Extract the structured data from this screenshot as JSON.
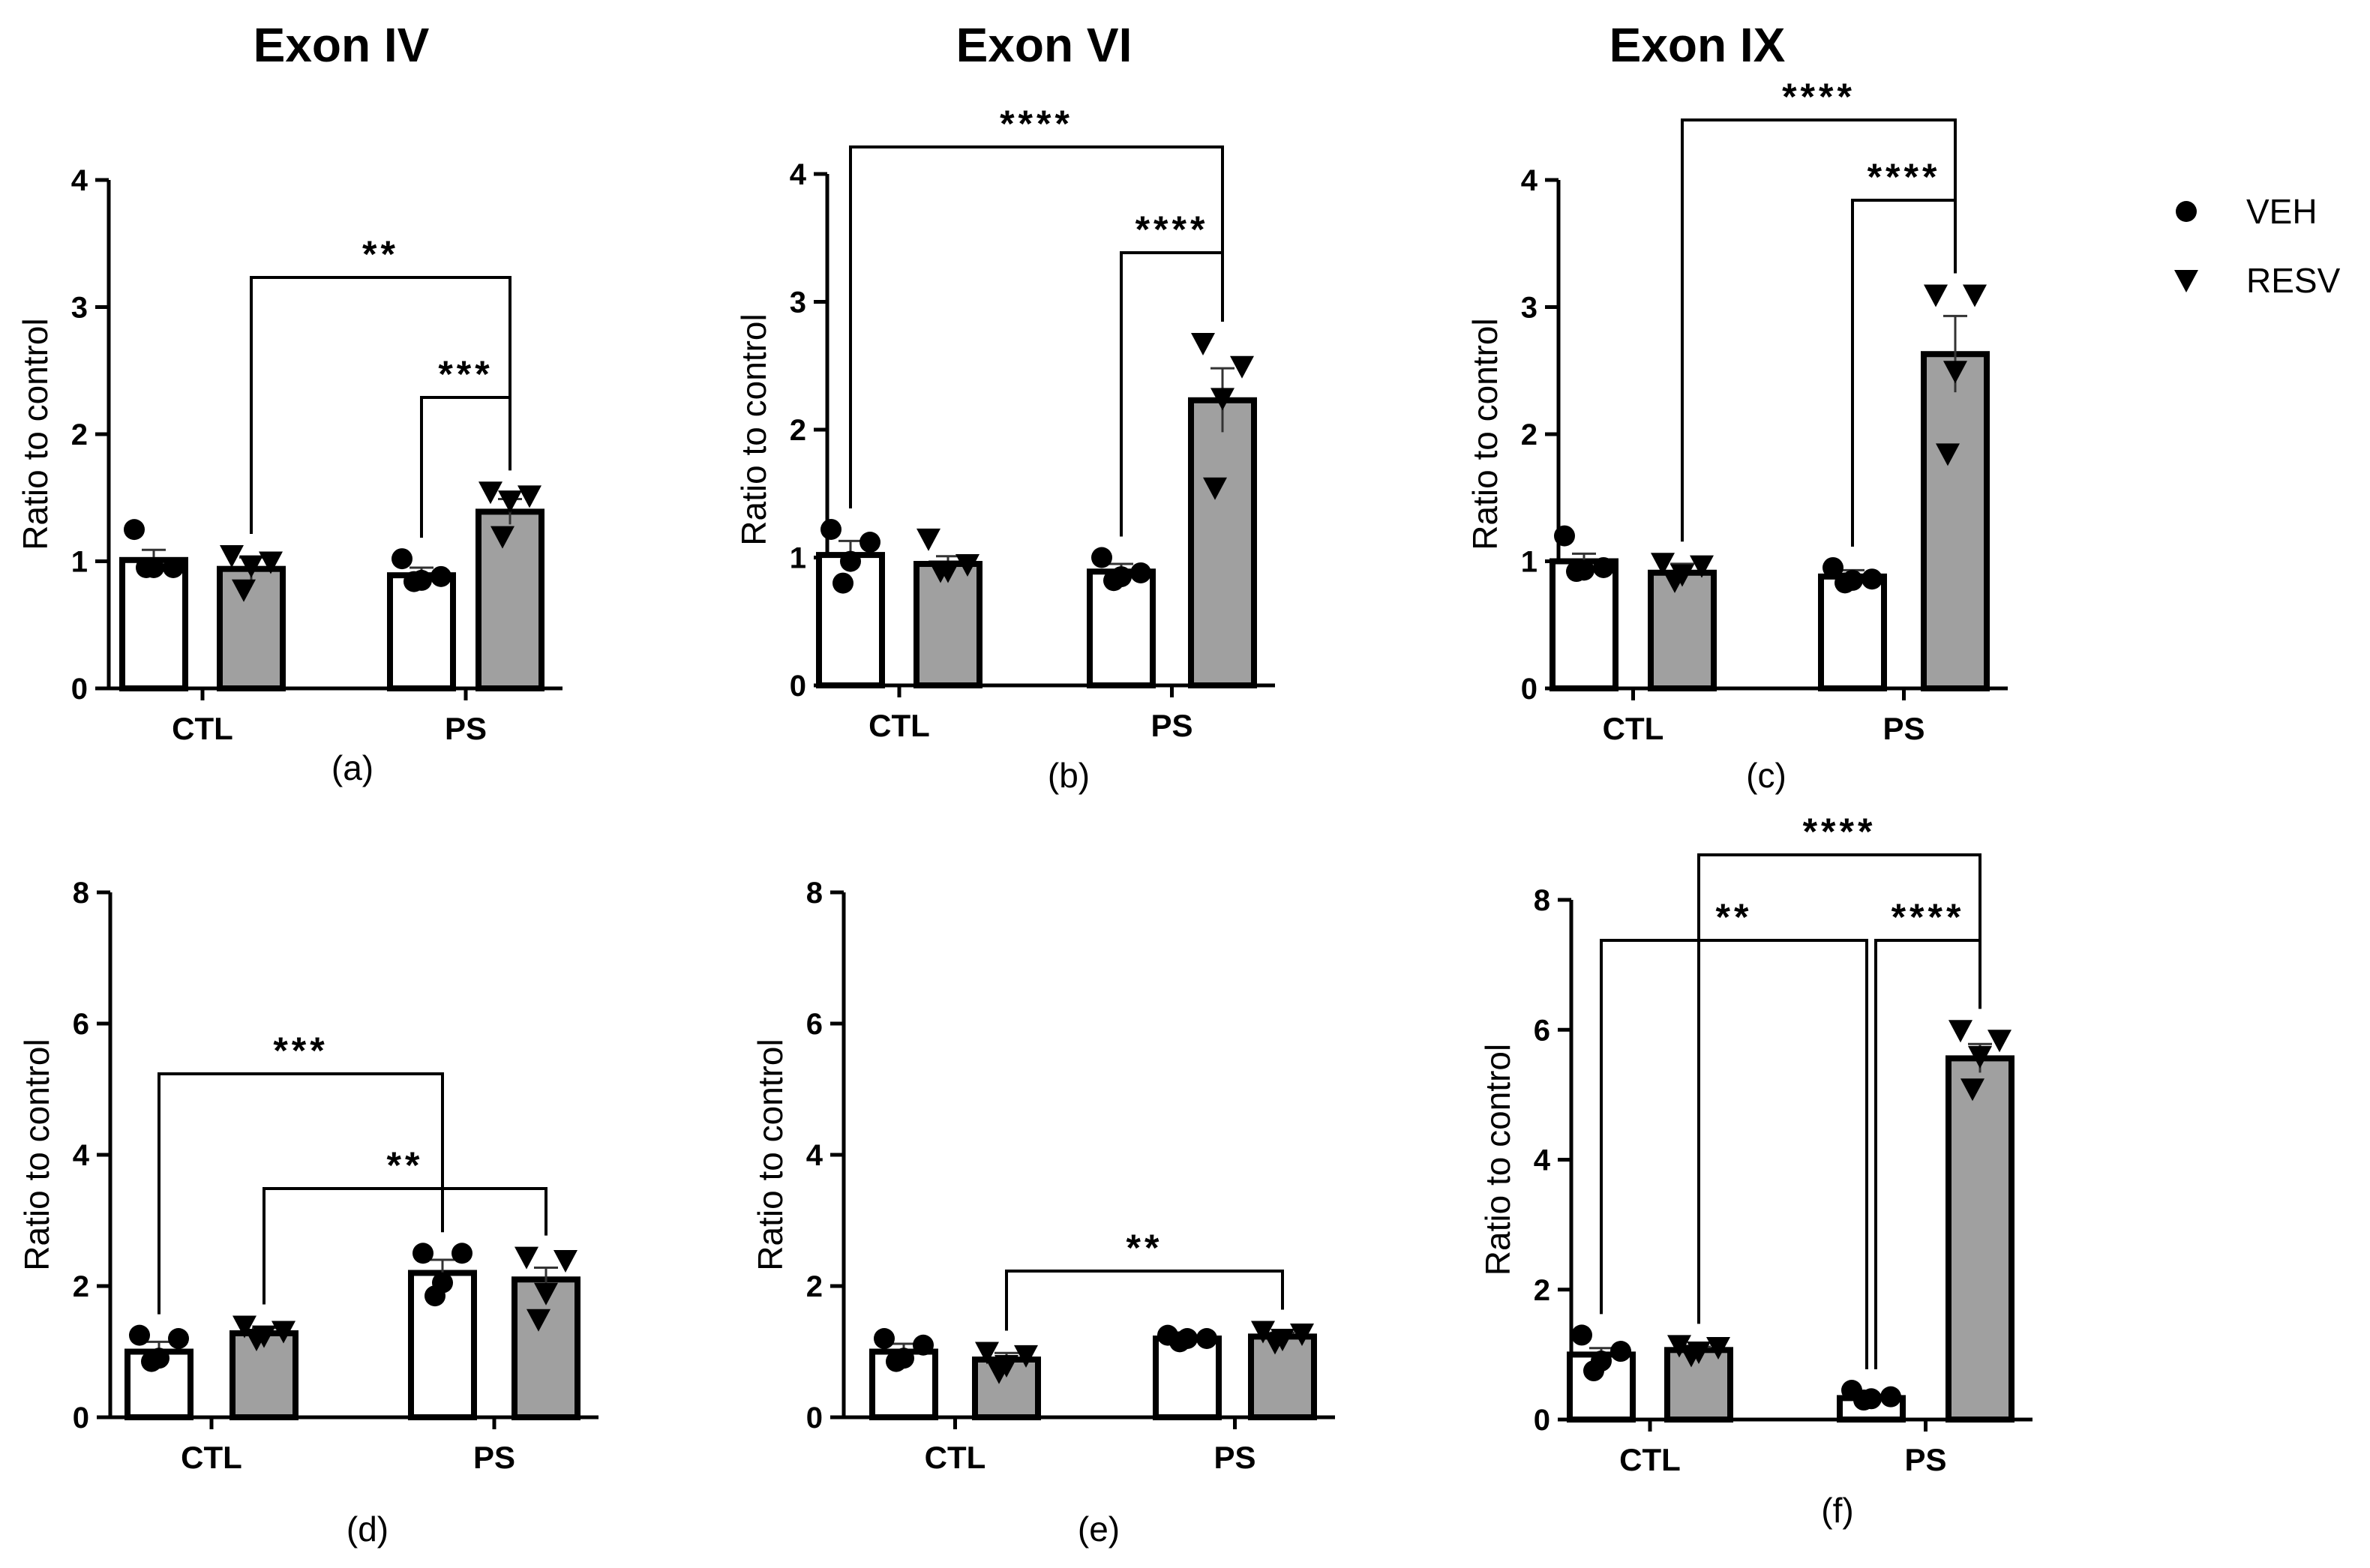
{
  "figure": {
    "column_titles": [
      "Exon IV",
      "Exon VI",
      "Exon IX"
    ],
    "legend": [
      {
        "label": "VEH",
        "marker": "circle",
        "fill": "#ffffff"
      },
      {
        "label": "RESV",
        "marker": "triangle-down",
        "fill": "#a0a0a0"
      }
    ]
  },
  "chart_data": [
    {
      "type": "bar",
      "panel_label": "(a)",
      "ylabel": "Ratio to  control",
      "ylim": [
        0,
        4
      ],
      "yticks": [
        0,
        1,
        2,
        3,
        4
      ],
      "categories": [
        "CTL",
        "PS"
      ],
      "series": [
        {
          "name": "VEH",
          "values": [
            1.01,
            0.89
          ],
          "sem": [
            0.08,
            0.06
          ],
          "points": [
            [
              1.25,
              0.95,
              0.95,
              0.95
            ],
            [
              1.02,
              0.88,
              0.85,
              0.84
            ]
          ]
        },
        {
          "name": "RESV",
          "values": [
            0.94,
            1.39
          ],
          "sem": [
            0.09,
            0.1
          ],
          "points": [
            [
              1.05,
              1.0,
              0.97,
              0.78
            ],
            [
              1.55,
              1.52,
              1.48,
              1.2
            ]
          ]
        }
      ],
      "significance": [
        {
          "from": [
            "RESV",
            "CTL"
          ],
          "to": [
            "RESV",
            "PS"
          ],
          "label": "**"
        },
        {
          "from": [
            "VEH",
            "PS"
          ],
          "to": [
            "RESV",
            "PS"
          ],
          "label": "***"
        }
      ]
    },
    {
      "type": "bar",
      "panel_label": "(b)",
      "ylabel": "Ratio to control",
      "ylim": [
        0,
        4
      ],
      "yticks": [
        0,
        1,
        2,
        3,
        4
      ],
      "categories": [
        "CTL",
        "PS"
      ],
      "series": [
        {
          "name": "VEH",
          "values": [
            1.02,
            0.89
          ],
          "sem": [
            0.11,
            0.06
          ],
          "points": [
            [
              1.22,
              1.12,
              0.97,
              0.8
            ],
            [
              1.0,
              0.88,
              0.85,
              0.82
            ]
          ]
        },
        {
          "name": "RESV",
          "values": [
            0.95,
            2.23
          ],
          "sem": [
            0.06,
            0.25
          ],
          "points": [
            [
              1.15,
              0.95,
              0.9,
              0.9
            ],
            [
              2.68,
              2.5,
              2.25,
              1.55
            ]
          ]
        }
      ],
      "significance": [
        {
          "from": [
            "VEH",
            "CTL"
          ],
          "to": [
            "RESV",
            "PS"
          ],
          "label": "****"
        },
        {
          "from": [
            "VEH",
            "PS"
          ],
          "to": [
            "RESV",
            "PS"
          ],
          "label": "****"
        }
      ]
    },
    {
      "type": "bar",
      "panel_label": "(c)",
      "ylabel": "Ratio to control",
      "ylim": [
        0,
        4
      ],
      "yticks": [
        0,
        1,
        2,
        3,
        4
      ],
      "categories": [
        "CTL",
        "PS"
      ],
      "series": [
        {
          "name": "VEH",
          "values": [
            1.0,
            0.88
          ],
          "sem": [
            0.06,
            0.05
          ],
          "points": [
            [
              1.2,
              0.95,
              0.93,
              0.92
            ],
            [
              0.95,
              0.86,
              0.85,
              0.83
            ]
          ]
        },
        {
          "name": "RESV",
          "values": [
            0.91,
            2.63
          ],
          "sem": [
            0.07,
            0.3
          ],
          "points": [
            [
              0.99,
              0.97,
              0.9,
              0.85
            ],
            [
              3.1,
              3.1,
              2.5,
              1.85
            ]
          ]
        }
      ],
      "significance": [
        {
          "from": [
            "RESV",
            "CTL"
          ],
          "to": [
            "RESV",
            "PS"
          ],
          "label": "****"
        },
        {
          "from": [
            "VEH",
            "PS"
          ],
          "to": [
            "RESV",
            "PS"
          ],
          "label": "****"
        }
      ]
    },
    {
      "type": "bar",
      "panel_label": "(d)",
      "ylabel": "Ratio to control",
      "ylim": [
        0,
        8
      ],
      "yticks": [
        0,
        2,
        4,
        6,
        8
      ],
      "categories": [
        "CTL",
        "PS"
      ],
      "series": [
        {
          "name": "VEH",
          "values": [
            1.0,
            2.2
          ],
          "sem": [
            0.15,
            0.2
          ],
          "points": [
            [
              1.25,
              1.2,
              0.9,
              0.85
            ],
            [
              2.5,
              2.5,
              2.05,
              1.85
            ]
          ]
        },
        {
          "name": "RESV",
          "values": [
            1.28,
            2.1
          ],
          "sem": [
            0.08,
            0.18
          ],
          "points": [
            [
              1.4,
              1.32,
              1.25,
              1.2
            ],
            [
              2.45,
              2.4,
              1.9,
              1.5
            ]
          ]
        }
      ],
      "significance": [
        {
          "from": [
            "VEH",
            "CTL"
          ],
          "to": [
            "VEH",
            "PS"
          ],
          "label": "***"
        },
        {
          "from": [
            "RESV",
            "CTL"
          ],
          "to": [
            "RESV",
            "PS"
          ],
          "label": "**"
        }
      ]
    },
    {
      "type": "bar",
      "panel_label": "(e)",
      "ylabel": "Ratio to control",
      "ylim": [
        0,
        8
      ],
      "yticks": [
        0,
        2,
        4,
        6,
        8
      ],
      "categories": [
        "CTL",
        "PS"
      ],
      "series": [
        {
          "name": "VEH",
          "values": [
            1.0,
            1.2
          ],
          "sem": [
            0.12,
            0.04
          ],
          "points": [
            [
              1.2,
              1.1,
              0.9,
              0.85
            ],
            [
              1.25,
              1.2,
              1.2,
              1.15
            ]
          ]
        },
        {
          "name": "RESV",
          "values": [
            0.88,
            1.23
          ],
          "sem": [
            0.1,
            0.06
          ],
          "points": [
            [
              1.0,
              0.95,
              0.8,
              0.7
            ],
            [
              1.32,
              1.28,
              1.2,
              1.15
            ]
          ]
        }
      ],
      "significance": [
        {
          "from": [
            "RESV",
            "CTL"
          ],
          "to": [
            "RESV",
            "PS"
          ],
          "label": "**"
        }
      ]
    },
    {
      "type": "bar",
      "panel_label": "(f)",
      "ylabel": "Ratio to control",
      "ylim": [
        0,
        8
      ],
      "yticks": [
        0,
        2,
        4,
        6,
        8
      ],
      "categories": [
        "CTL",
        "PS"
      ],
      "series": [
        {
          "name": "VEH",
          "values": [
            1.0,
            0.33
          ],
          "sem": [
            0.1,
            0.05
          ],
          "points": [
            [
              1.3,
              1.05,
              0.9,
              0.75
            ],
            [
              0.45,
              0.35,
              0.32,
              0.3
            ]
          ]
        },
        {
          "name": "RESV",
          "values": [
            1.07,
            5.56
          ],
          "sem": [
            0.05,
            0.22
          ],
          "points": [
            [
              1.15,
              1.12,
              1.05,
              1.0
            ],
            [
              6.0,
              5.85,
              5.6,
              5.1
            ]
          ]
        }
      ],
      "significance": [
        {
          "from": [
            "RESV",
            "CTL"
          ],
          "to": [
            "RESV",
            "PS"
          ],
          "label": "****"
        },
        {
          "from": [
            "VEH",
            "CTL"
          ],
          "to": [
            "VEH",
            "PS"
          ],
          "label": "**"
        },
        {
          "from": [
            "VEH",
            "PS"
          ],
          "to": [
            "RESV",
            "PS"
          ],
          "label": "****"
        }
      ]
    }
  ]
}
